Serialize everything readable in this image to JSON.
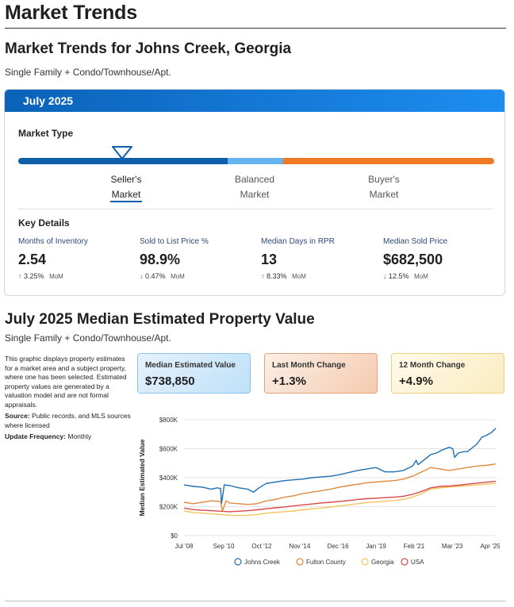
{
  "page_title": "Market Trends",
  "market": {
    "heading": "Market Trends for Johns Creek, Georgia",
    "subheading": "Single Family + Condo/Townhouse/Apt.",
    "card_header": "July 2025",
    "market_type_label": "Market Type",
    "segments": [
      {
        "line1": "Seller's",
        "line2": "Market"
      },
      {
        "line1": "Balanced",
        "line2": "Market"
      },
      {
        "line1": "Buyer's",
        "line2": "Market"
      }
    ],
    "colors": {
      "seller": "#0d5fab",
      "balanced": "#66b3f0",
      "buyer": "#ee7a24"
    },
    "key_details_label": "Key Details",
    "metrics": [
      {
        "label": "Months of Inventory",
        "value": "2.54",
        "direction": "up",
        "arrow": "↑",
        "change": "3.25%",
        "period": "MoM"
      },
      {
        "label": "Sold to List Price %",
        "value": "98.9%",
        "direction": "down",
        "arrow": "↓",
        "change": "0.47%",
        "period": "MoM"
      },
      {
        "label": "Median Days in RPR",
        "value": "13",
        "direction": "up",
        "arrow": "↑",
        "change": "8.33%",
        "period": "MoM"
      },
      {
        "label": "Median Sold Price",
        "value": "$682,500",
        "direction": "down",
        "arrow": "↓",
        "change": "12.5%",
        "period": "MoM"
      }
    ]
  },
  "property_value": {
    "heading": "July 2025 Median Estimated Property Value",
    "subheading": "Single Family + Condo/Townhouse/Apt.",
    "description": "This graphic displays property estimates for a market area and a subject property, where one has been selected. Estimated property values are generated by a valuation model and are not formal appraisals.",
    "source_label": "Source:",
    "source_text": "Public records, and MLS sources where licensed",
    "update_label": "Update Frequency:",
    "update_text": "Monthly",
    "boxes": [
      {
        "label": "Median Estimated Value",
        "value": "$738,850"
      },
      {
        "label": "Last Month Change",
        "value": "+1.3%"
      },
      {
        "label": "12 Month Change",
        "value": "+4.9%"
      }
    ]
  },
  "chart_data": {
    "type": "line",
    "ylabel": "Median Estimated Value",
    "ylim": [
      0,
      800000
    ],
    "y_ticks": [
      "$0",
      "$200K",
      "$400K",
      "$600K",
      "$800K"
    ],
    "x_ticks": [
      {
        "label": "Jul '08",
        "x": 2008.5
      },
      {
        "label": "Sep '10",
        "x": 2010.67
      },
      {
        "label": "Oct '12",
        "x": 2012.75
      },
      {
        "label": "Nov '14",
        "x": 2014.83
      },
      {
        "label": "Dec '16",
        "x": 2016.92
      },
      {
        "label": "Jan '19",
        "x": 2019.0
      },
      {
        "label": "Feb '21",
        "x": 2021.08
      },
      {
        "label": "Mar '23",
        "x": 2023.17
      },
      {
        "label": "Apr '25",
        "x": 2025.25
      }
    ],
    "xlim": [
      2008.5,
      2025.55
    ],
    "legend_position": "bottom",
    "series": [
      {
        "name": "Johns Creek",
        "color": "#1f6fb2",
        "x": [
          2008.5,
          2009.0,
          2009.5,
          2010.0,
          2010.3,
          2010.5,
          2010.55,
          2010.7,
          2011.0,
          2011.5,
          2012.0,
          2012.3,
          2012.6,
          2013.0,
          2013.5,
          2014.0,
          2014.5,
          2015.0,
          2015.5,
          2016.0,
          2016.5,
          2017.0,
          2017.5,
          2018.0,
          2018.5,
          2019.0,
          2019.5,
          2020.0,
          2020.5,
          2021.0,
          2021.2,
          2021.3,
          2021.5,
          2021.8,
          2022.0,
          2022.3,
          2022.6,
          2023.0,
          2023.2,
          2023.3,
          2023.5,
          2023.8,
          2024.0,
          2024.5,
          2024.8,
          2025.0,
          2025.3,
          2025.55
        ],
        "y": [
          350000,
          340000,
          335000,
          320000,
          330000,
          325000,
          220000,
          350000,
          345000,
          330000,
          320000,
          300000,
          330000,
          360000,
          370000,
          380000,
          385000,
          390000,
          400000,
          405000,
          410000,
          420000,
          435000,
          450000,
          460000,
          470000,
          440000,
          440000,
          450000,
          480000,
          520000,
          490000,
          510000,
          540000,
          560000,
          570000,
          590000,
          610000,
          600000,
          540000,
          570000,
          580000,
          580000,
          630000,
          680000,
          690000,
          710000,
          740000
        ]
      },
      {
        "name": "Fulton County",
        "color": "#e08a3c",
        "x": [
          2008.5,
          2009.0,
          2009.5,
          2010.0,
          2010.5,
          2010.6,
          2010.8,
          2011.0,
          2011.5,
          2012.0,
          2012.5,
          2013.0,
          2013.5,
          2014.0,
          2014.5,
          2015.0,
          2015.5,
          2016.0,
          2016.5,
          2017.0,
          2017.5,
          2018.0,
          2018.5,
          2019.0,
          2019.5,
          2020.0,
          2020.5,
          2021.0,
          2021.5,
          2022.0,
          2022.5,
          2023.0,
          2023.5,
          2024.0,
          2024.5,
          2025.0,
          2025.55
        ],
        "y": [
          230000,
          220000,
          230000,
          240000,
          235000,
          170000,
          240000,
          225000,
          220000,
          215000,
          220000,
          240000,
          250000,
          265000,
          275000,
          290000,
          300000,
          310000,
          320000,
          335000,
          345000,
          355000,
          365000,
          370000,
          375000,
          380000,
          390000,
          410000,
          440000,
          470000,
          460000,
          450000,
          460000,
          470000,
          480000,
          485000,
          495000
        ]
      },
      {
        "name": "Georgia",
        "color": "#f2c55a",
        "x": [
          2008.5,
          2009.0,
          2009.5,
          2010.0,
          2010.5,
          2011.0,
          2011.5,
          2012.0,
          2012.5,
          2013.0,
          2013.5,
          2014.0,
          2014.5,
          2015.0,
          2015.5,
          2016.0,
          2016.5,
          2017.0,
          2017.5,
          2018.0,
          2018.5,
          2019.0,
          2019.5,
          2020.0,
          2020.5,
          2021.0,
          2021.5,
          2022.0,
          2022.5,
          2023.0,
          2023.5,
          2024.0,
          2024.5,
          2025.0,
          2025.55
        ],
        "y": [
          170000,
          160000,
          155000,
          150000,
          145000,
          140000,
          138000,
          140000,
          145000,
          155000,
          160000,
          165000,
          170000,
          178000,
          185000,
          190000,
          197000,
          205000,
          212000,
          220000,
          228000,
          232000,
          238000,
          242000,
          250000,
          265000,
          290000,
          320000,
          330000,
          335000,
          340000,
          345000,
          350000,
          355000,
          360000
        ]
      },
      {
        "name": "USA",
        "color": "#d8484a",
        "x": [
          2008.5,
          2009.0,
          2009.5,
          2010.0,
          2010.5,
          2011.0,
          2011.5,
          2012.0,
          2012.5,
          2013.0,
          2013.5,
          2014.0,
          2014.5,
          2015.0,
          2015.5,
          2016.0,
          2016.5,
          2017.0,
          2017.5,
          2018.0,
          2018.5,
          2019.0,
          2019.5,
          2020.0,
          2020.5,
          2021.0,
          2021.5,
          2022.0,
          2022.5,
          2023.0,
          2023.5,
          2024.0,
          2024.5,
          2025.0,
          2025.55
        ],
        "y": [
          190000,
          180000,
          175000,
          172000,
          168000,
          165000,
          168000,
          172000,
          178000,
          185000,
          192000,
          198000,
          205000,
          212000,
          218000,
          225000,
          230000,
          236000,
          242000,
          250000,
          255000,
          258000,
          262000,
          265000,
          272000,
          285000,
          305000,
          330000,
          340000,
          342000,
          348000,
          355000,
          362000,
          368000,
          375000
        ]
      }
    ]
  }
}
